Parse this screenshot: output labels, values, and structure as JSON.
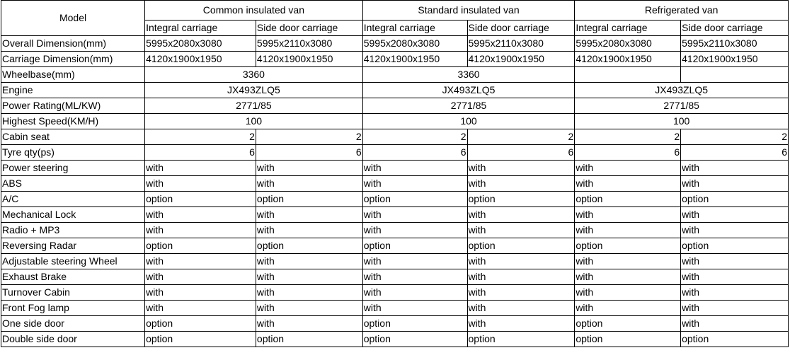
{
  "header": {
    "model_label": "Model",
    "groups": [
      "Common insulated van",
      "Standard insulated van",
      "Refrigerated van"
    ],
    "sub": [
      "Integral carriage",
      "Side door carriage"
    ]
  },
  "dims": [
    {
      "label": "Overall Dimension(mm)",
      "values": [
        "5995x2080x3080",
        "5995x2110x3080",
        "5995x2080x3080",
        "5995x2110x3080",
        "5995x2080x3080",
        "5995x2110x3080"
      ]
    },
    {
      "label": "Carriage Dimension(mm)",
      "values": [
        "4120x1900x1950",
        "4120x1900x1950",
        "4120x1900x1950",
        "4120x1900x1950",
        "4120x1900x1950",
        "4120x1900x1950"
      ]
    }
  ],
  "wheelbase": {
    "label": "Wheelbase(mm)",
    "values": [
      "3360",
      "3360"
    ]
  },
  "merged": [
    {
      "label": "Engine",
      "values": [
        "JX493ZLQ5",
        "JX493ZLQ5",
        "JX493ZLQ5"
      ]
    },
    {
      "label": "Power Rating(ML/KW)",
      "values": [
        "2771/85",
        "2771/85",
        "2771/85"
      ]
    },
    {
      "label": "Highest Speed(KM/H)",
      "values": [
        "100",
        "100",
        "100"
      ]
    }
  ],
  "numeric": [
    {
      "label": "Cabin seat",
      "values": [
        "2",
        "2",
        "2",
        "2",
        "2",
        "2"
      ]
    },
    {
      "label": "Tyre qty(ps)",
      "values": [
        "6",
        "6",
        "6",
        "6",
        "6",
        "6"
      ]
    }
  ],
  "features": [
    {
      "label": "Power steering",
      "values": [
        "with",
        "with",
        "with",
        "with",
        "with",
        "with"
      ]
    },
    {
      "label": "ABS",
      "values": [
        "with",
        "with",
        "with",
        "with",
        "with",
        "with"
      ]
    },
    {
      "label": "A/C",
      "values": [
        "option",
        "option",
        "option",
        "option",
        "option",
        "option"
      ]
    },
    {
      "label": "Mechanical Lock",
      "values": [
        "with",
        "with",
        "with",
        "with",
        "with",
        "with"
      ]
    },
    {
      "label": "Radio + MP3",
      "values": [
        "with",
        "with",
        "with",
        "with",
        "with",
        "with"
      ]
    },
    {
      "label": "Reversing Radar",
      "values": [
        "option",
        "option",
        "option",
        "option",
        "option",
        "option"
      ]
    },
    {
      "label": "Adjustable steering Wheel",
      "values": [
        "with",
        "with",
        "with",
        "with",
        "with",
        "with"
      ]
    },
    {
      "label": "Exhaust Brake",
      "values": [
        "with",
        "with",
        "with",
        "with",
        "with",
        "with"
      ]
    },
    {
      "label": "Turnover Cabin",
      "values": [
        "with",
        "with",
        "with",
        "with",
        "with",
        "with"
      ]
    },
    {
      "label": "Front Fog lamp",
      "values": [
        "with",
        "with",
        "with",
        "with",
        "with",
        "with"
      ]
    },
    {
      "label": "One side door",
      "values": [
        "option",
        "with",
        "option",
        "with",
        "option",
        "with"
      ]
    },
    {
      "label": "Double side door",
      "values": [
        "option",
        "option",
        "option",
        "option",
        "option",
        "option"
      ]
    }
  ]
}
